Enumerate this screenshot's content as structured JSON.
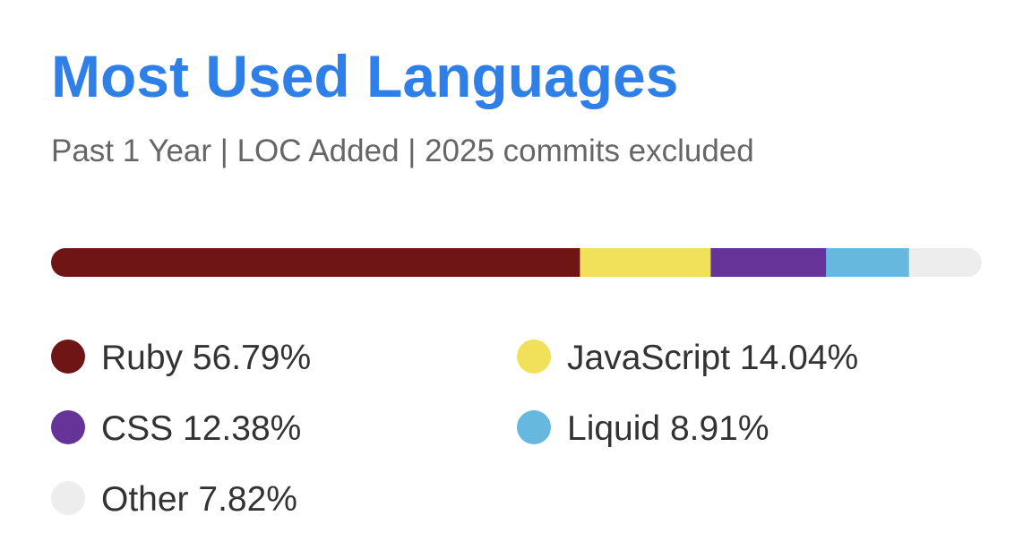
{
  "chart_data": {
    "type": "stacked-bar",
    "title": "Most Used Languages",
    "subtitle": "Past 1 Year | LOC Added | 2025 commits excluded",
    "series": [
      {
        "name": "Ruby",
        "color": "#701516",
        "values": [
          56.79
        ],
        "value_labels": [
          "56.79%"
        ]
      },
      {
        "name": "JavaScript",
        "color": "#f1e05a",
        "values": [
          14.04
        ],
        "value_labels": [
          "14.04%"
        ]
      },
      {
        "name": "CSS",
        "color": "#663399",
        "values": [
          12.38
        ],
        "value_labels": [
          "12.38%"
        ]
      },
      {
        "name": "Liquid",
        "color": "#67b8de",
        "values": [
          8.91
        ],
        "value_labels": [
          "8.91%"
        ]
      },
      {
        "name": "Other",
        "color": "#ededed",
        "values": [
          7.82
        ],
        "value_labels": [
          "7.82%"
        ]
      }
    ]
  }
}
